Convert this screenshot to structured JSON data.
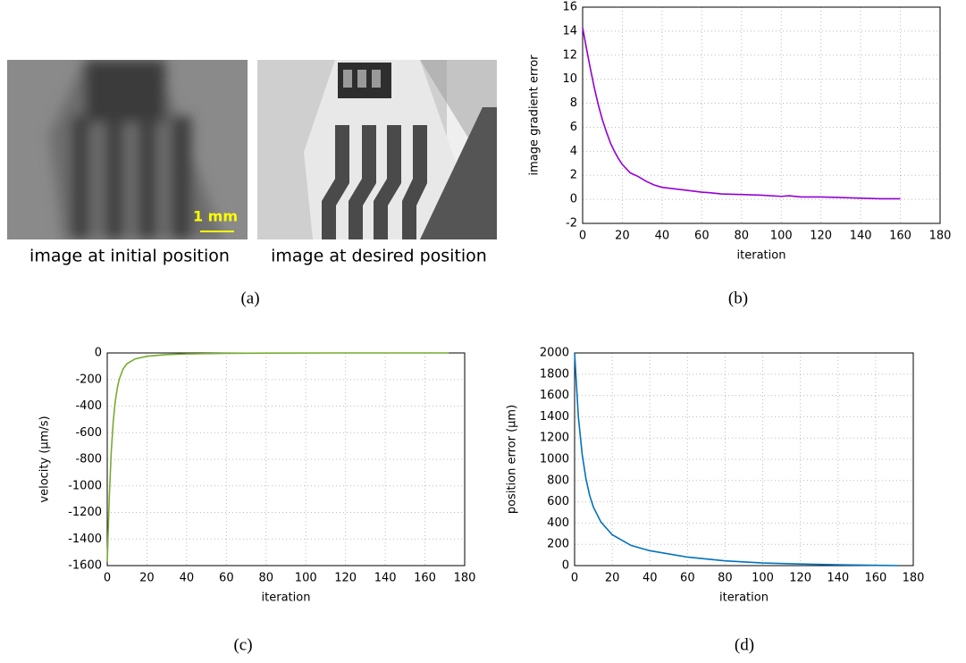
{
  "figure": {
    "images": [
      {
        "caption": "image at initial position"
      },
      {
        "caption": "image at desired position"
      }
    ],
    "scale_bar": "1 mm",
    "panel_labels": [
      "(a)",
      "(b)",
      "(c)",
      "(d)"
    ]
  },
  "chart_data": [
    {
      "type": "line",
      "xlabel": "iteration",
      "ylabel": "image gradient error",
      "color": "#9400d3",
      "x": [
        0,
        2,
        4,
        6,
        8,
        10,
        12,
        14,
        16,
        18,
        20,
        24,
        28,
        32,
        36,
        40,
        50,
        60,
        64,
        70,
        80,
        90,
        100,
        104,
        110,
        120,
        130,
        140,
        150,
        160
      ],
      "values": [
        14.3,
        12.5,
        10.8,
        9.2,
        7.8,
        6.6,
        5.6,
        4.7,
        4.0,
        3.4,
        2.9,
        2.2,
        1.9,
        1.5,
        1.2,
        1.0,
        0.8,
        0.6,
        0.55,
        0.45,
        0.4,
        0.35,
        0.25,
        0.3,
        0.2,
        0.2,
        0.15,
        0.1,
        0.05,
        0.05
      ],
      "xlim": [
        0,
        180
      ],
      "xticks": [
        0,
        20,
        40,
        60,
        80,
        100,
        120,
        140,
        160,
        180
      ],
      "ylim": [
        -2,
        16
      ],
      "yticks": [
        -2,
        0,
        2,
        4,
        6,
        8,
        10,
        12,
        14,
        16
      ],
      "grid": true
    },
    {
      "type": "line",
      "xlabel": "iteration",
      "ylabel": "velocity (µm/s)",
      "color": "#77ac30",
      "x": [
        0,
        1,
        2,
        3,
        4,
        5,
        6,
        8,
        10,
        14,
        20,
        30,
        40,
        60,
        80,
        120,
        172
      ],
      "values": [
        -1570,
        -1100,
        -750,
        -520,
        -370,
        -270,
        -200,
        -120,
        -80,
        -45,
        -25,
        -12,
        -7,
        -3,
        -1,
        0,
        0
      ],
      "xlim": [
        0,
        180
      ],
      "xticks": [
        0,
        20,
        40,
        60,
        80,
        100,
        120,
        140,
        160,
        180
      ],
      "ylim": [
        -1600,
        0
      ],
      "yticks": [
        -1600,
        -1400,
        -1200,
        -1000,
        -800,
        -600,
        -400,
        -200,
        0
      ],
      "grid": true
    },
    {
      "type": "line",
      "xlabel": "iteration",
      "ylabel": "position error (µm)",
      "color": "#0072bd",
      "x": [
        0,
        1,
        2,
        4,
        6,
        8,
        10,
        14,
        20,
        30,
        40,
        60,
        80,
        100,
        120,
        140,
        160,
        172
      ],
      "values": [
        2000,
        1700,
        1400,
        1050,
        820,
        660,
        550,
        410,
        290,
        190,
        140,
        80,
        45,
        25,
        15,
        8,
        3,
        0
      ],
      "xlim": [
        0,
        180
      ],
      "xticks": [
        0,
        20,
        40,
        60,
        80,
        100,
        120,
        140,
        160,
        180
      ],
      "ylim": [
        0,
        2000
      ],
      "yticks": [
        0,
        200,
        400,
        600,
        800,
        1000,
        1200,
        1400,
        1600,
        1800,
        2000
      ],
      "grid": true
    }
  ]
}
